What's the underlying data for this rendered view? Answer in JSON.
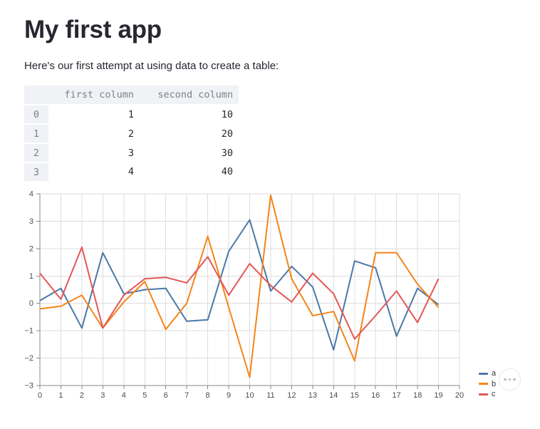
{
  "page": {
    "title": "My first app",
    "intro": "Here's our first attempt at using data to create a table:"
  },
  "table": {
    "index": [
      "0",
      "1",
      "2",
      "3"
    ],
    "columns": [
      "first column",
      "second column"
    ],
    "rows": [
      [
        "1",
        "10"
      ],
      [
        "2",
        "20"
      ],
      [
        "3",
        "30"
      ],
      [
        "4",
        "40"
      ]
    ]
  },
  "chart_data": {
    "type": "line",
    "x": [
      0,
      1,
      2,
      3,
      4,
      5,
      6,
      7,
      8,
      9,
      10,
      11,
      12,
      13,
      14,
      15,
      16,
      17,
      18,
      19
    ],
    "series": [
      {
        "name": "a",
        "color": "#4c78a8",
        "values": [
          0.1,
          0.55,
          -0.9,
          1.85,
          0.35,
          0.5,
          0.55,
          -0.65,
          -0.6,
          1.9,
          3.05,
          0.45,
          1.35,
          0.6,
          -1.7,
          1.55,
          1.3,
          -1.2,
          0.55,
          -0.05
        ]
      },
      {
        "name": "b",
        "color": "#f58518",
        "values": [
          -0.2,
          -0.1,
          0.3,
          -0.9,
          0.05,
          0.8,
          -0.95,
          0.0,
          2.45,
          -0.15,
          -2.7,
          3.95,
          0.9,
          -0.45,
          -0.3,
          -2.1,
          1.85,
          1.85,
          0.7,
          -0.15
        ]
      },
      {
        "name": "c",
        "color": "#e45756",
        "values": [
          1.1,
          0.15,
          2.05,
          -0.9,
          0.3,
          0.9,
          0.95,
          0.75,
          1.7,
          0.3,
          1.45,
          0.65,
          0.05,
          1.1,
          0.35,
          -1.3,
          -0.45,
          0.45,
          -0.7,
          0.9
        ]
      }
    ],
    "title": "",
    "xlabel": "",
    "ylabel": "",
    "xlim": [
      0,
      20
    ],
    "ylim": [
      -3,
      4
    ],
    "xticks": [
      0,
      1,
      2,
      3,
      4,
      5,
      6,
      7,
      8,
      9,
      10,
      11,
      12,
      13,
      14,
      15,
      16,
      17,
      18,
      19,
      20
    ],
    "yticks": [
      -3,
      -2,
      -1,
      0,
      1,
      2,
      3,
      4
    ],
    "grid": true,
    "legend_position": "right",
    "legend_labels": [
      "a",
      "b",
      "c"
    ]
  },
  "chart_ui": {
    "menu_icon": "ellipsis"
  },
  "colors": {
    "text": "#262730",
    "table_header_bg": "#f0f2f6",
    "table_header_text": "#7d818c",
    "grid_line": "#dddddd",
    "axis_line": "#888888",
    "tick_label": "#4c4c4c"
  }
}
